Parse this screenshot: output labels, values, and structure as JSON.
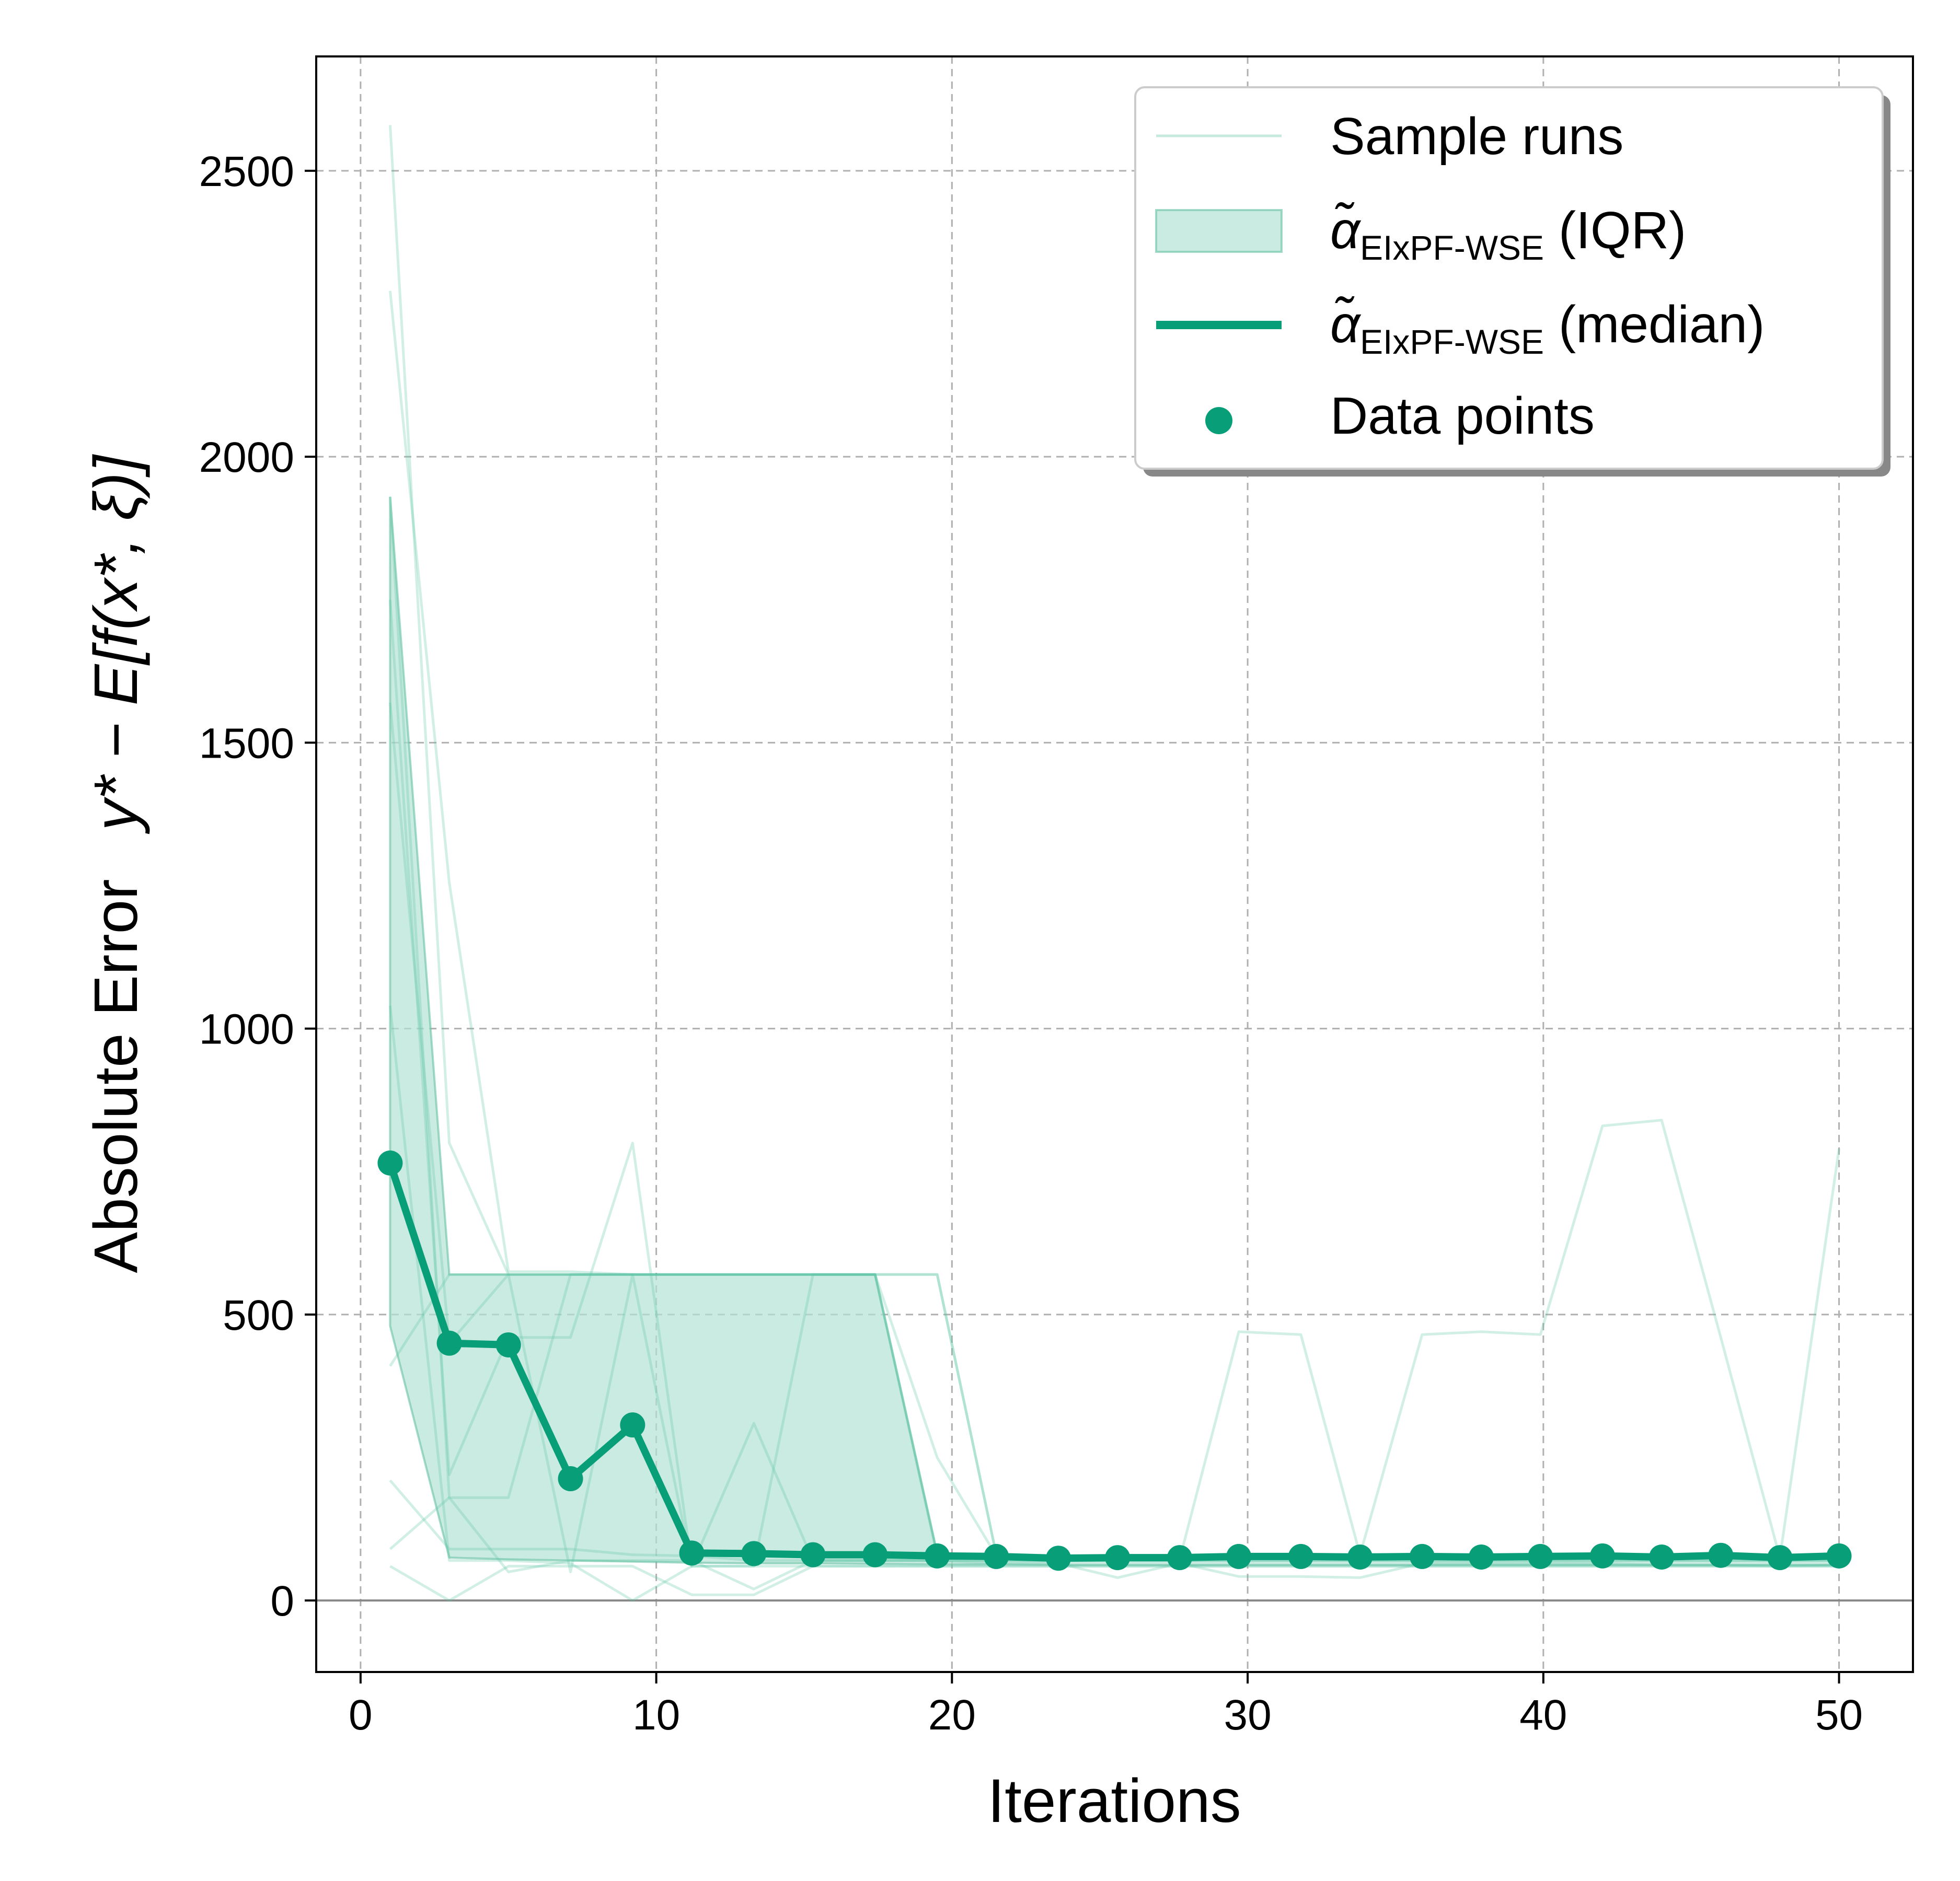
{
  "chart_data": {
    "type": "line",
    "xlabel": "Iterations",
    "ylabel_prefix": "Absolute Error",
    "ylabel_formula": "y* − E[f(x*, ξ)]",
    "xlim": [
      -1.5,
      52.5
    ],
    "ylim": [
      -125,
      2700
    ],
    "xticks": [
      0,
      10,
      20,
      30,
      40,
      50
    ],
    "yticks": [
      0,
      500,
      1000,
      1500,
      2000,
      2500
    ],
    "grid": true,
    "legend_position": "top-right",
    "colors": {
      "accent": "#089e78",
      "run": "#5fc4a4",
      "band": "#b3e2d4",
      "band_edge": "#67c2a4",
      "grid": "#b0b0b0",
      "zero": "#888888"
    },
    "legend": [
      {
        "kind": "line-faint",
        "label": "Sample runs"
      },
      {
        "kind": "band",
        "label_main": "α̃",
        "label_sub": "EIxPF-WSE",
        "label_tail": " (IQR)"
      },
      {
        "kind": "line-bold",
        "label_main": "α̃",
        "label_sub": "EIxPF-WSE",
        "label_tail": " (median)"
      },
      {
        "kind": "dot",
        "label": "Data points"
      }
    ],
    "median": {
      "x": [
        1,
        3,
        5,
        7.1,
        9.2,
        11.2,
        13.3,
        15.3,
        17.4,
        19.5,
        21.5,
        23.6,
        25.6,
        27.7,
        29.7,
        31.8,
        33.8,
        35.9,
        37.9,
        39.9,
        42,
        44,
        46,
        48,
        50
      ],
      "y": [
        765,
        450,
        447,
        213,
        307,
        83,
        82,
        80,
        80,
        78,
        77,
        74,
        75,
        75,
        77,
        77,
        76,
        77,
        76,
        77,
        78,
        76,
        79,
        75,
        78
      ]
    },
    "iqr": {
      "x": [
        1,
        3,
        5,
        7.1,
        9.2,
        11.2,
        13.3,
        15.3,
        17.4,
        19.5,
        21.5,
        23.6,
        25.6,
        27.7,
        29.7,
        31.8,
        33.8,
        35.9,
        37.9,
        39.9,
        42,
        44,
        46,
        48,
        50
      ],
      "upper": [
        1930,
        570,
        570,
        570,
        570,
        570,
        570,
        570,
        570,
        82,
        80,
        78,
        78,
        78,
        80,
        80,
        80,
        80,
        80,
        80,
        80,
        80,
        80,
        78,
        80
      ],
      "lower": [
        480,
        75,
        72,
        70,
        68,
        66,
        65,
        65,
        64,
        63,
        63,
        62,
        62,
        62,
        62,
        62,
        62,
        62,
        62,
        62,
        62,
        62,
        62,
        62,
        62
      ]
    },
    "sample_runs": [
      {
        "x": [
          1,
          3,
          5,
          7.1,
          9.2,
          11.2,
          13.3,
          15.3,
          17.4,
          19.5,
          21.5,
          23.6,
          25.6,
          27.7,
          29.7,
          31.8,
          33.8,
          35.9,
          37.9,
          39.9,
          42,
          44,
          46,
          48,
          50
        ],
        "y": [
          2580,
          800,
          570,
          570,
          570,
          570,
          570,
          570,
          570,
          570,
          80,
          78,
          78,
          78,
          80,
          80,
          80,
          80,
          80,
          80,
          80,
          80,
          80,
          78,
          80
        ]
      },
      {
        "x": [
          1,
          3,
          5,
          7.1,
          9.2,
          11.2,
          13.3,
          15.3,
          17.4,
          19.5,
          21.5,
          23.6,
          25.6,
          27.7,
          29.7,
          31.8,
          33.8,
          35.9,
          37.9,
          39.9,
          42,
          44,
          46,
          48,
          50
        ],
        "y": [
          2290,
          1255,
          575,
          575,
          570,
          570,
          570,
          570,
          570,
          250,
          78,
          76,
          76,
          76,
          78,
          78,
          78,
          78,
          78,
          78,
          78,
          78,
          78,
          76,
          78
        ]
      },
      {
        "x": [
          1,
          3,
          5,
          7.1,
          9.2,
          11.2,
          13.3,
          15.3,
          17.4,
          19.5,
          21.5,
          23.6,
          25.6,
          27.7,
          29.7,
          31.8,
          33.8,
          35.9,
          37.9,
          39.9,
          42,
          44,
          46,
          48,
          50
        ],
        "y": [
          1930,
          180,
          180,
          570,
          570,
          570,
          570,
          570,
          570,
          82,
          75,
          72,
          72,
          72,
          470,
          465,
          80,
          465,
          470,
          465,
          830,
          840,
          460,
          75,
          790
        ]
      },
      {
        "x": [
          1,
          3,
          5,
          7.1,
          9.2,
          11.2,
          13.3,
          15.3,
          17.4,
          19.5,
          21.5,
          23.6,
          25.6,
          27.7,
          29.7,
          31.8,
          33.8,
          35.9,
          37.9,
          39.9,
          42,
          44,
          46,
          48,
          50
        ],
        "y": [
          1750,
          220,
          460,
          460,
          800,
          60,
          310,
          70,
          70,
          70,
          65,
          65,
          40,
          65,
          42,
          42,
          40,
          65,
          65,
          65,
          65,
          62,
          62,
          60,
          62
        ]
      },
      {
        "x": [
          1,
          3,
          5,
          7.1,
          9.2,
          11.2,
          13.3,
          15.3,
          17.4,
          19.5,
          21.5,
          23.6,
          25.6,
          27.7,
          29.7,
          31.8,
          33.8,
          35.9,
          37.9,
          39.9,
          42,
          44,
          46,
          48,
          50
        ],
        "y": [
          1570,
          450,
          570,
          50,
          570,
          60,
          60,
          570,
          570,
          78,
          78,
          74,
          74,
          74,
          76,
          76,
          76,
          76,
          76,
          76,
          76,
          76,
          76,
          74,
          76
        ]
      },
      {
        "x": [
          1,
          3,
          5,
          7.1,
          9.2,
          11.2,
          13.3,
          15.3,
          17.4,
          19.5,
          21.5,
          23.6,
          25.6,
          27.7,
          29.7,
          31.8,
          33.8,
          35.9,
          37.9,
          39.9,
          42,
          44,
          46,
          48,
          50
        ],
        "y": [
          1040,
          70,
          70,
          65,
          0,
          60,
          60,
          60,
          60,
          60,
          60,
          60,
          60,
          60,
          60,
          60,
          60,
          60,
          60,
          60,
          60,
          60,
          60,
          60,
          60
        ]
      },
      {
        "x": [
          1,
          3,
          5,
          7.1,
          9.2,
          11.2,
          13.3,
          15.3,
          17.4,
          19.5,
          21.5,
          23.6,
          25.6,
          27.7,
          29.7,
          31.8,
          33.8,
          35.9,
          37.9,
          39.9,
          42,
          44,
          46,
          48,
          50
        ],
        "y": [
          410,
          570,
          570,
          570,
          570,
          570,
          570,
          570,
          570,
          570,
          80,
          78,
          78,
          78,
          80,
          80,
          80,
          80,
          80,
          80,
          80,
          80,
          80,
          78,
          80
        ]
      },
      {
        "x": [
          1,
          3,
          5,
          7.1,
          9.2,
          11.2,
          13.3,
          15.3,
          17.4,
          19.5,
          21.5,
          23.6,
          25.6,
          27.7,
          29.7,
          31.8,
          33.8,
          35.9,
          37.9,
          39.9,
          42,
          44,
          46,
          48,
          50
        ],
        "y": [
          210,
          90,
          90,
          90,
          80,
          78,
          70,
          70,
          70,
          70,
          70,
          70,
          70,
          70,
          70,
          70,
          70,
          70,
          70,
          70,
          70,
          70,
          70,
          70,
          70
        ]
      },
      {
        "x": [
          1,
          3,
          5,
          7.1,
          9.2,
          11.2,
          13.3,
          15.3,
          17.4,
          19.5,
          21.5,
          23.6,
          25.6,
          27.7,
          29.7,
          31.8,
          33.8,
          35.9,
          37.9,
          39.9,
          42,
          44,
          46,
          48,
          50
        ],
        "y": [
          90,
          180,
          50,
          70,
          70,
          70,
          20,
          70,
          70,
          70,
          70,
          70,
          70,
          70,
          70,
          70,
          70,
          70,
          70,
          70,
          70,
          70,
          70,
          70,
          70
        ]
      },
      {
        "x": [
          1,
          3,
          5,
          7.1,
          9.2,
          11.2,
          13.3,
          15.3,
          17.4,
          19.5,
          21.5,
          23.6,
          25.6,
          27.7,
          29.7,
          31.8,
          33.8,
          35.9,
          37.9,
          39.9,
          42,
          44,
          46,
          48,
          50
        ],
        "y": [
          60,
          0,
          60,
          60,
          60,
          10,
          10,
          60,
          60,
          60,
          60,
          60,
          60,
          60,
          60,
          60,
          60,
          60,
          60,
          60,
          60,
          60,
          60,
          60,
          60
        ]
      }
    ]
  }
}
